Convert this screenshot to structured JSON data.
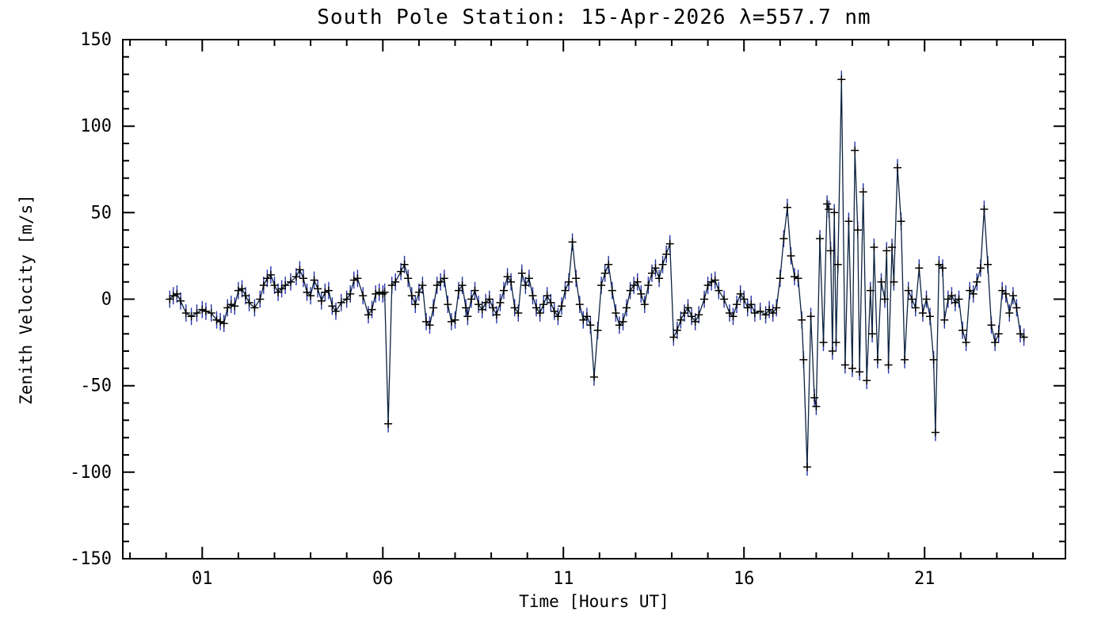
{
  "chart_data": {
    "type": "line",
    "title": "South Pole Station: 15-Apr-2026 λ=557.7 nm",
    "xlabel": "Time [Hours UT]",
    "ylabel": "Zenith Velocity [m/s]",
    "xlim": [
      -1.2,
      24.9
    ],
    "ylim": [
      -150,
      150
    ],
    "x_major_ticks": [
      1,
      6,
      11,
      16,
      21
    ],
    "x_major_labels": [
      "01",
      "06",
      "11",
      "16",
      "21"
    ],
    "x_minor_step": 1,
    "y_major_ticks": [
      -150,
      -100,
      -50,
      0,
      50,
      100,
      150
    ],
    "y_major_labels": [
      "-150",
      "-100",
      "-50",
      "0",
      "50",
      "100",
      "150"
    ],
    "y_minor_step": 10,
    "grid": false,
    "legend": null,
    "marker": "plus",
    "error_bar": 5,
    "colors": {
      "line": "#0c2340",
      "marker": "#000000",
      "error": "#2734a8",
      "axis": "#000000",
      "background": "#ffffff"
    },
    "series": [
      {
        "name": "zenith-velocity",
        "points": [
          [
            0.1,
            0
          ],
          [
            0.2,
            2
          ],
          [
            0.3,
            3
          ],
          [
            0.4,
            -1
          ],
          [
            0.55,
            -8
          ],
          [
            0.7,
            -10
          ],
          [
            0.85,
            -8
          ],
          [
            1.0,
            -6
          ],
          [
            1.1,
            -7
          ],
          [
            1.25,
            -8
          ],
          [
            1.4,
            -12
          ],
          [
            1.5,
            -13
          ],
          [
            1.6,
            -14
          ],
          [
            1.7,
            -5
          ],
          [
            1.8,
            -3
          ],
          [
            1.9,
            -4
          ],
          [
            2.0,
            5
          ],
          [
            2.1,
            6
          ],
          [
            2.2,
            2
          ],
          [
            2.3,
            -2
          ],
          [
            2.45,
            -5
          ],
          [
            2.6,
            0
          ],
          [
            2.7,
            8
          ],
          [
            2.8,
            12
          ],
          [
            2.9,
            14
          ],
          [
            3.0,
            8
          ],
          [
            3.1,
            4
          ],
          [
            3.2,
            6
          ],
          [
            3.3,
            8
          ],
          [
            3.45,
            10
          ],
          [
            3.6,
            13
          ],
          [
            3.7,
            17
          ],
          [
            3.8,
            12
          ],
          [
            3.9,
            4
          ],
          [
            4.0,
            2
          ],
          [
            4.1,
            11
          ],
          [
            4.2,
            6
          ],
          [
            4.3,
            -1
          ],
          [
            4.4,
            4
          ],
          [
            4.5,
            5
          ],
          [
            4.6,
            -4
          ],
          [
            4.7,
            -7
          ],
          [
            4.85,
            -2
          ],
          [
            5.0,
            0
          ],
          [
            5.1,
            3
          ],
          [
            5.2,
            11
          ],
          [
            5.3,
            12
          ],
          [
            5.45,
            2
          ],
          [
            5.6,
            -9
          ],
          [
            5.7,
            -6
          ],
          [
            5.8,
            3
          ],
          [
            5.9,
            4
          ],
          [
            6.0,
            3
          ],
          [
            6.05,
            4
          ],
          [
            6.15,
            -72
          ],
          [
            6.25,
            8
          ],
          [
            6.35,
            10
          ],
          [
            6.5,
            16
          ],
          [
            6.6,
            20
          ],
          [
            6.7,
            12
          ],
          [
            6.8,
            2
          ],
          [
            6.9,
            -3
          ],
          [
            7.0,
            4
          ],
          [
            7.1,
            8
          ],
          [
            7.2,
            -13
          ],
          [
            7.3,
            -15
          ],
          [
            7.4,
            -5
          ],
          [
            7.5,
            8
          ],
          [
            7.6,
            10
          ],
          [
            7.7,
            12
          ],
          [
            7.8,
            -3
          ],
          [
            7.9,
            -13
          ],
          [
            8.0,
            -12
          ],
          [
            8.1,
            5
          ],
          [
            8.2,
            8
          ],
          [
            8.3,
            -5
          ],
          [
            8.35,
            -10
          ],
          [
            8.45,
            0
          ],
          [
            8.55,
            5
          ],
          [
            8.65,
            -3
          ],
          [
            8.75,
            -6
          ],
          [
            8.85,
            -2
          ],
          [
            8.95,
            0
          ],
          [
            9.05,
            -5
          ],
          [
            9.15,
            -9
          ],
          [
            9.25,
            -2
          ],
          [
            9.35,
            5
          ],
          [
            9.45,
            13
          ],
          [
            9.55,
            10
          ],
          [
            9.65,
            -5
          ],
          [
            9.75,
            -8
          ],
          [
            9.85,
            15
          ],
          [
            9.95,
            8
          ],
          [
            10.05,
            12
          ],
          [
            10.15,
            2
          ],
          [
            10.25,
            -5
          ],
          [
            10.35,
            -8
          ],
          [
            10.45,
            -3
          ],
          [
            10.55,
            2
          ],
          [
            10.65,
            -2
          ],
          [
            10.75,
            -7
          ],
          [
            10.85,
            -10
          ],
          [
            10.95,
            -4
          ],
          [
            11.05,
            5
          ],
          [
            11.15,
            10
          ],
          [
            11.25,
            33
          ],
          [
            11.35,
            12
          ],
          [
            11.45,
            -3
          ],
          [
            11.55,
            -12
          ],
          [
            11.65,
            -10
          ],
          [
            11.75,
            -15
          ],
          [
            11.85,
            -45
          ],
          [
            11.95,
            -18
          ],
          [
            12.05,
            8
          ],
          [
            12.15,
            15
          ],
          [
            12.25,
            20
          ],
          [
            12.35,
            5
          ],
          [
            12.45,
            -8
          ],
          [
            12.55,
            -15
          ],
          [
            12.65,
            -13
          ],
          [
            12.75,
            -5
          ],
          [
            12.85,
            5
          ],
          [
            12.95,
            8
          ],
          [
            13.05,
            10
          ],
          [
            13.15,
            3
          ],
          [
            13.25,
            -3
          ],
          [
            13.35,
            8
          ],
          [
            13.45,
            15
          ],
          [
            13.55,
            18
          ],
          [
            13.65,
            12
          ],
          [
            13.75,
            20
          ],
          [
            13.85,
            26
          ],
          [
            13.95,
            32
          ],
          [
            14.05,
            -22
          ],
          [
            14.15,
            -18
          ],
          [
            14.25,
            -12
          ],
          [
            14.35,
            -8
          ],
          [
            14.45,
            -5
          ],
          [
            14.55,
            -10
          ],
          [
            14.65,
            -13
          ],
          [
            14.75,
            -9
          ],
          [
            14.9,
            0
          ],
          [
            15.0,
            8
          ],
          [
            15.1,
            10
          ],
          [
            15.2,
            11
          ],
          [
            15.3,
            5
          ],
          [
            15.45,
            0
          ],
          [
            15.6,
            -8
          ],
          [
            15.7,
            -10
          ],
          [
            15.8,
            -3
          ],
          [
            15.9,
            3
          ],
          [
            16.0,
            0
          ],
          [
            16.1,
            -5
          ],
          [
            16.2,
            -3
          ],
          [
            16.3,
            -8
          ],
          [
            16.45,
            -7
          ],
          [
            16.6,
            -9
          ],
          [
            16.7,
            -6
          ],
          [
            16.8,
            -8
          ],
          [
            16.9,
            -5
          ],
          [
            17.0,
            12
          ],
          [
            17.1,
            35
          ],
          [
            17.2,
            53
          ],
          [
            17.3,
            25
          ],
          [
            17.4,
            13
          ],
          [
            17.5,
            12
          ],
          [
            17.6,
            -12
          ],
          [
            17.65,
            -35
          ],
          [
            17.75,
            -97
          ],
          [
            17.85,
            -10
          ],
          [
            17.95,
            -57
          ],
          [
            18.0,
            -62
          ],
          [
            18.1,
            35
          ],
          [
            18.2,
            -25
          ],
          [
            18.3,
            55
          ],
          [
            18.35,
            52
          ],
          [
            18.4,
            28
          ],
          [
            18.45,
            -30
          ],
          [
            18.5,
            50
          ],
          [
            18.55,
            -25
          ],
          [
            18.6,
            20
          ],
          [
            18.7,
            127
          ],
          [
            18.8,
            -38
          ],
          [
            18.9,
            45
          ],
          [
            19.0,
            -40
          ],
          [
            19.07,
            86
          ],
          [
            19.15,
            40
          ],
          [
            19.2,
            -42
          ],
          [
            19.3,
            62
          ],
          [
            19.4,
            -47
          ],
          [
            19.5,
            5
          ],
          [
            19.55,
            -20
          ],
          [
            19.6,
            30
          ],
          [
            19.7,
            -35
          ],
          [
            19.8,
            10
          ],
          [
            19.9,
            0
          ],
          [
            19.95,
            28
          ],
          [
            20.0,
            -38
          ],
          [
            20.1,
            30
          ],
          [
            20.15,
            10
          ],
          [
            20.25,
            76
          ],
          [
            20.35,
            45
          ],
          [
            20.45,
            -35
          ],
          [
            20.55,
            5
          ],
          [
            20.65,
            0
          ],
          [
            20.75,
            -5
          ],
          [
            20.85,
            18
          ],
          [
            20.95,
            -8
          ],
          [
            21.05,
            0
          ],
          [
            21.15,
            -10
          ],
          [
            21.25,
            -35
          ],
          [
            21.3,
            -77
          ],
          [
            21.4,
            20
          ],
          [
            21.5,
            18
          ],
          [
            21.55,
            -12
          ],
          [
            21.65,
            0
          ],
          [
            21.75,
            2
          ],
          [
            21.85,
            -2
          ],
          [
            21.95,
            0
          ],
          [
            22.05,
            -18
          ],
          [
            22.15,
            -25
          ],
          [
            22.25,
            5
          ],
          [
            22.35,
            3
          ],
          [
            22.45,
            10
          ],
          [
            22.55,
            18
          ],
          [
            22.65,
            52
          ],
          [
            22.75,
            20
          ],
          [
            22.85,
            -15
          ],
          [
            22.95,
            -25
          ],
          [
            23.05,
            -20
          ],
          [
            23.15,
            5
          ],
          [
            23.25,
            3
          ],
          [
            23.35,
            -8
          ],
          [
            23.45,
            2
          ],
          [
            23.55,
            -5
          ],
          [
            23.65,
            -20
          ],
          [
            23.75,
            -22
          ]
        ]
      }
    ]
  }
}
